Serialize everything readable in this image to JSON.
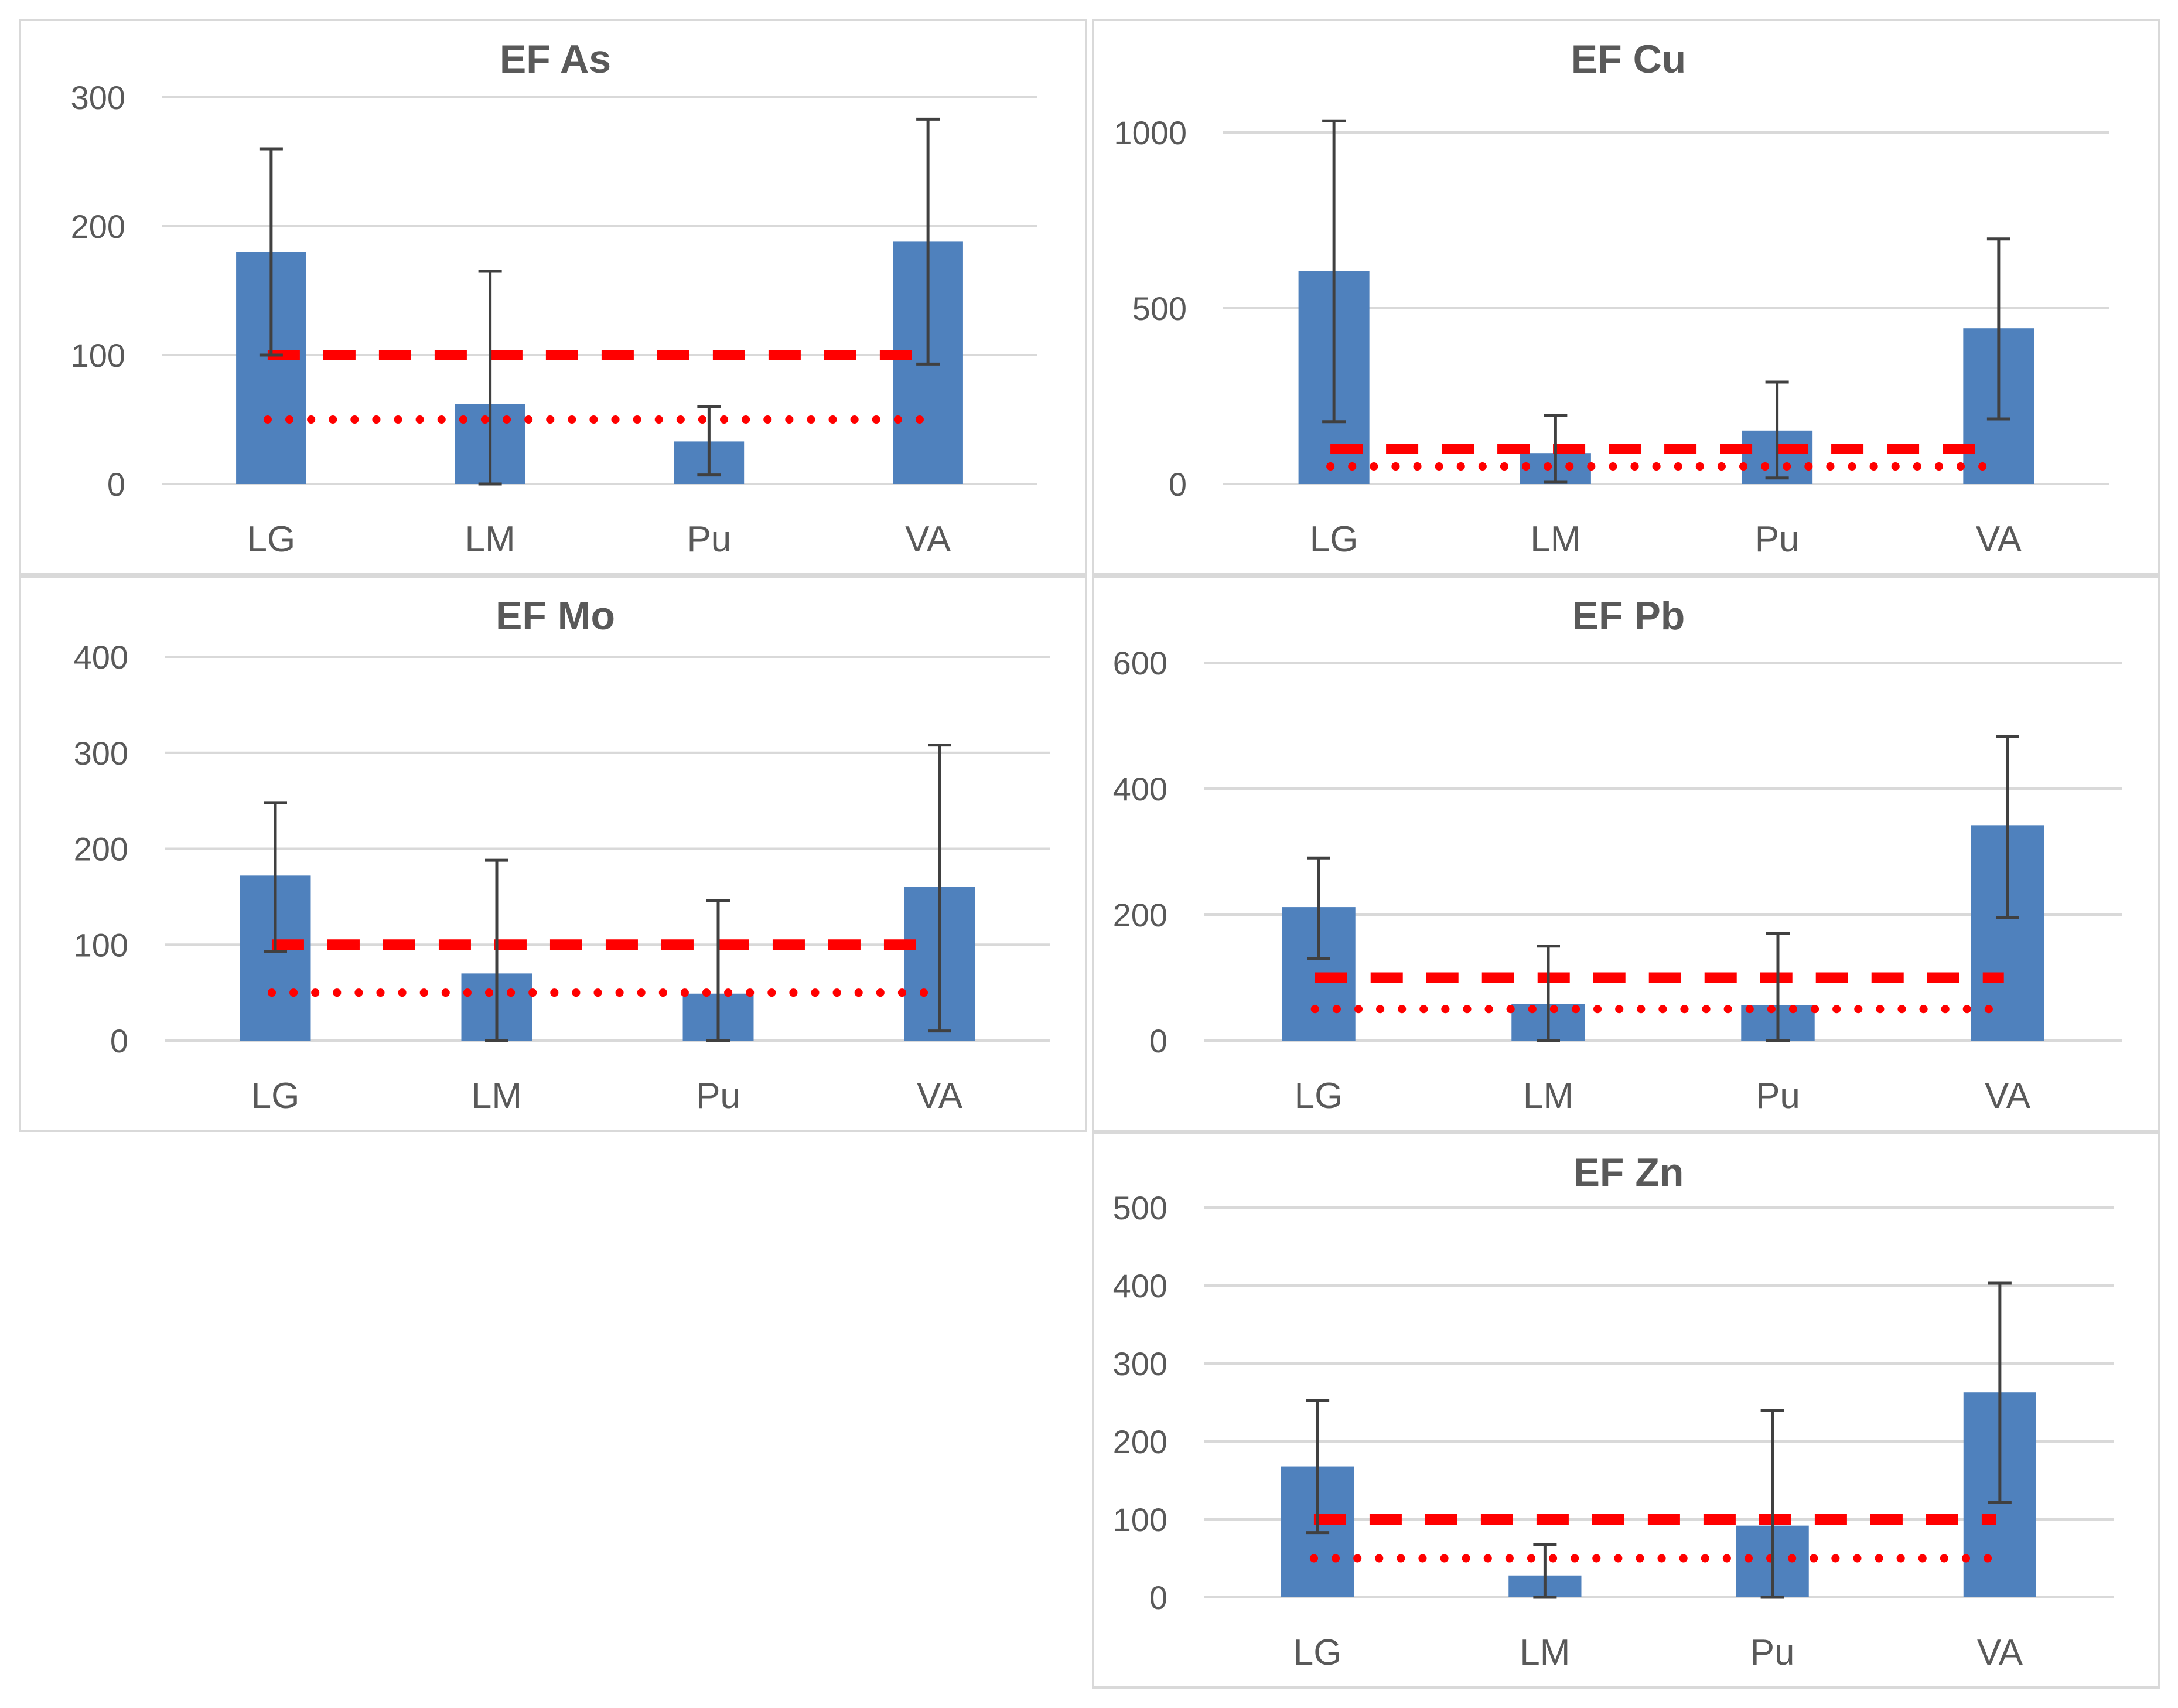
{
  "colors": {
    "bar": "#4f81bd",
    "grid": "#d9d9d9",
    "error_bar": "#404040",
    "reference_line": "#ff0000",
    "text": "#595959"
  },
  "chart_data": [
    {
      "type": "bar",
      "title": "EF As",
      "categories": [
        "LG",
        "LM",
        "Pu",
        "VA"
      ],
      "values": [
        180,
        62,
        33,
        188
      ],
      "error_low": [
        100,
        0,
        7,
        93
      ],
      "error_high": [
        260,
        165,
        60,
        283
      ],
      "ylim": [
        0,
        300
      ],
      "yticks": [
        0,
        100,
        200,
        300
      ],
      "ytick_labels": [
        "0",
        "100",
        "200",
        "300"
      ],
      "reference_lines": [
        {
          "style": "dashed",
          "value": 100
        },
        {
          "style": "dotted",
          "value": 50
        }
      ]
    },
    {
      "type": "bar",
      "title": "EF Cu",
      "categories": [
        "LG",
        "LM",
        "Pu",
        "VA"
      ],
      "values": [
        605,
        88,
        152,
        443
      ],
      "error_low": [
        177,
        5,
        17,
        185
      ],
      "error_high": [
        1033,
        195,
        290,
        697
      ],
      "ylim": [
        0,
        1000
      ],
      "yticks": [
        0,
        500,
        1000
      ],
      "ytick_labels": [
        "0",
        "500",
        "1000"
      ],
      "reference_lines": [
        {
          "style": "dashed",
          "value": 100
        },
        {
          "style": "dotted",
          "value": 50
        }
      ]
    },
    {
      "type": "bar",
      "title": "EF Mo",
      "categories": [
        "LG",
        "LM",
        "Pu",
        "VA"
      ],
      "values": [
        172,
        70,
        49,
        160
      ],
      "error_low": [
        93,
        0,
        0,
        10
      ],
      "error_high": [
        248,
        188,
        146,
        308
      ],
      "ylim": [
        0,
        400
      ],
      "yticks": [
        0,
        100,
        200,
        300,
        400
      ],
      "ytick_labels": [
        "0",
        "100",
        "200",
        "300",
        "400"
      ],
      "reference_lines": [
        {
          "style": "dashed",
          "value": 100
        },
        {
          "style": "dotted",
          "value": 50
        }
      ]
    },
    {
      "type": "bar",
      "title": "EF Pb",
      "categories": [
        "LG",
        "LM",
        "Pu",
        "VA"
      ],
      "values": [
        212,
        58,
        56,
        342
      ],
      "error_low": [
        130,
        0,
        0,
        195
      ],
      "error_high": [
        290,
        150,
        170,
        483
      ],
      "ylim": [
        0,
        600
      ],
      "yticks": [
        0,
        200,
        400,
        600
      ],
      "ytick_labels": [
        "0",
        "200",
        "400",
        "600"
      ],
      "reference_lines": [
        {
          "style": "dashed",
          "value": 100
        },
        {
          "style": "dotted",
          "value": 50
        }
      ]
    },
    {
      "type": "bar",
      "title": "EF Zn",
      "categories": [
        "LG",
        "LM",
        "Pu",
        "VA"
      ],
      "values": [
        168,
        28,
        92,
        263
      ],
      "error_low": [
        83,
        0,
        0,
        122
      ],
      "error_high": [
        253,
        68,
        240,
        403
      ],
      "ylim": [
        0,
        500
      ],
      "yticks": [
        0,
        100,
        200,
        300,
        400,
        500
      ],
      "ytick_labels": [
        "0",
        "100",
        "200",
        "300",
        "400",
        "500"
      ],
      "reference_lines": [
        {
          "style": "dashed",
          "value": 100
        },
        {
          "style": "dotted",
          "value": 50
        }
      ]
    }
  ]
}
